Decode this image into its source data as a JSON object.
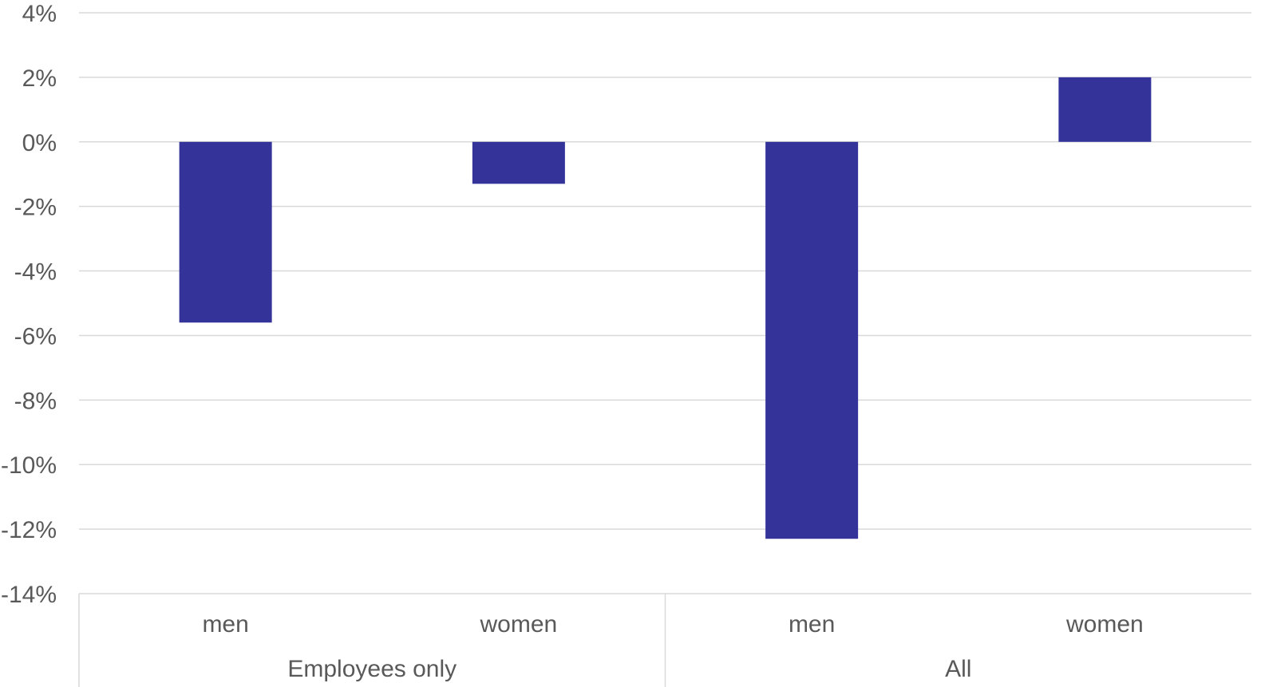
{
  "chart_data": {
    "type": "bar",
    "title": "",
    "xlabel": "",
    "ylabel": "",
    "y_unit": "%",
    "ylim": [
      -14,
      4
    ],
    "y_ticks": [
      4,
      2,
      0,
      -2,
      -4,
      -6,
      -8,
      -10,
      -12,
      -14
    ],
    "y_tick_labels": [
      "4%",
      "2%",
      "0%",
      "-2%",
      "-4%",
      "-6%",
      "-8%",
      "-10%",
      "-12%",
      "-14%"
    ],
    "grid": true,
    "legend": "none",
    "bar_color": "#333399",
    "grid_color": "#d9d9d9",
    "axis_label_color": "#595959",
    "groups": [
      {
        "label": "Employees only",
        "categories": [
          "men",
          "women"
        ],
        "values": [
          -5.6,
          -1.3
        ]
      },
      {
        "label": "All",
        "categories": [
          "men",
          "women"
        ],
        "values": [
          -12.3,
          2.0
        ]
      }
    ]
  }
}
